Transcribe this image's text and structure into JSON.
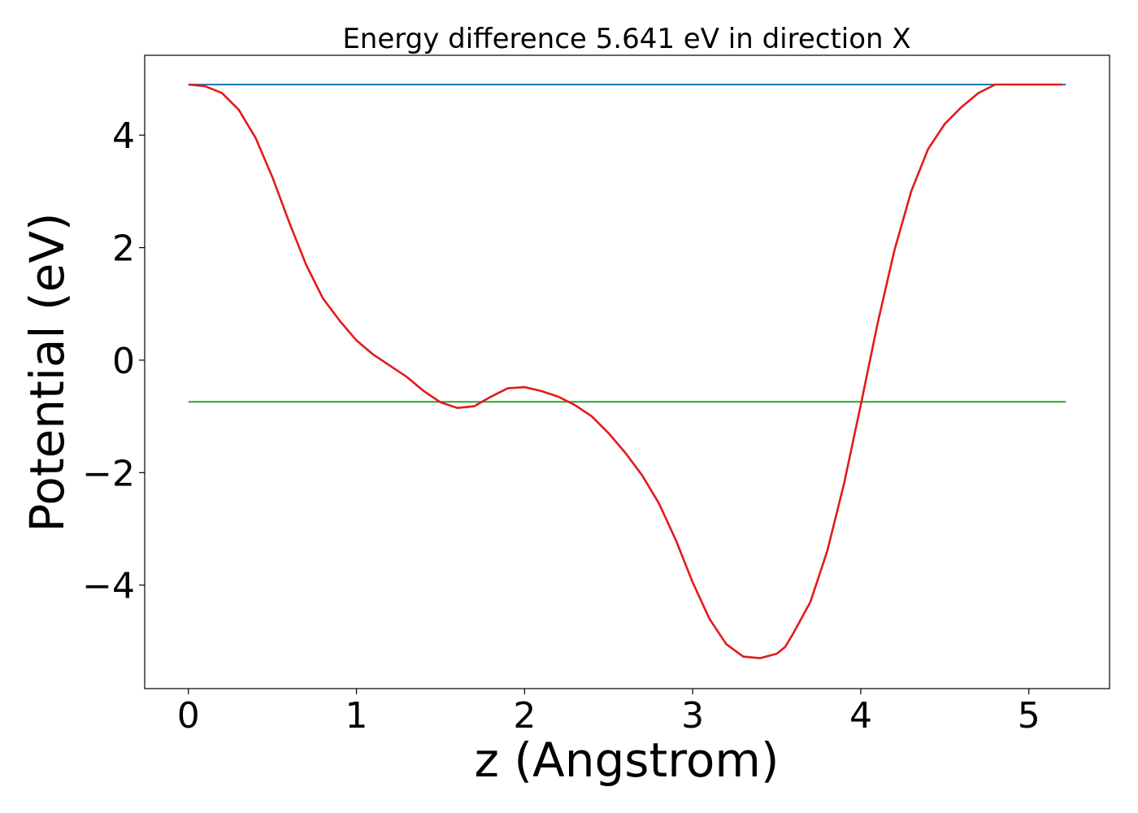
{
  "chart_data": {
    "type": "line",
    "title": "Energy difference 5.641 eV in direction X",
    "xlabel": "z (Angstrom)",
    "ylabel": "Potential (eV)",
    "xlim": [
      -0.26,
      5.48
    ],
    "ylim": [
      -5.84,
      5.42
    ],
    "xticks": [
      0,
      1,
      2,
      3,
      4,
      5
    ],
    "xtick_labels": [
      "0",
      "1",
      "2",
      "3",
      "4",
      "5"
    ],
    "yticks": [
      4,
      2,
      0,
      -2,
      -4
    ],
    "ytick_labels": [
      "4",
      "2",
      "0",
      "−2",
      "−4"
    ],
    "grid": false,
    "legend": "none",
    "series": [
      {
        "color": "#e31a1c",
        "x": [
          0.0,
          0.1,
          0.2,
          0.3,
          0.4,
          0.5,
          0.6,
          0.7,
          0.8,
          0.9,
          1.0,
          1.1,
          1.2,
          1.3,
          1.4,
          1.5,
          1.6,
          1.7,
          1.8,
          1.9,
          2.0,
          2.1,
          2.2,
          2.3,
          2.4,
          2.5,
          2.6,
          2.7,
          2.8,
          2.9,
          3.0,
          3.1,
          3.2,
          3.3,
          3.4,
          3.5,
          3.55,
          3.6,
          3.7,
          3.8,
          3.9,
          4.0,
          4.1,
          4.2,
          4.3,
          4.4,
          4.5,
          4.6,
          4.7,
          4.8,
          4.9,
          5.0,
          5.1,
          5.2
        ],
        "y": [
          4.9,
          4.87,
          4.75,
          4.45,
          3.95,
          3.25,
          2.45,
          1.7,
          1.1,
          0.7,
          0.35,
          0.1,
          -0.1,
          -0.3,
          -0.55,
          -0.75,
          -0.85,
          -0.82,
          -0.65,
          -0.5,
          -0.48,
          -0.55,
          -0.65,
          -0.8,
          -1.0,
          -1.3,
          -1.65,
          -2.05,
          -2.55,
          -3.2,
          -3.95,
          -4.6,
          -5.05,
          -5.27,
          -5.3,
          -5.22,
          -5.1,
          -4.85,
          -4.3,
          -3.4,
          -2.2,
          -0.8,
          0.65,
          1.95,
          3.0,
          3.75,
          4.2,
          4.5,
          4.75,
          4.9,
          4.9,
          4.9,
          4.9,
          4.9
        ]
      },
      {
        "color": "#1f77b4",
        "x": [
          0.0,
          5.22
        ],
        "y": [
          4.9,
          4.9
        ]
      },
      {
        "color": "#2ca02c",
        "x": [
          0.0,
          5.22
        ],
        "y": [
          -0.74,
          -0.74
        ]
      }
    ]
  }
}
